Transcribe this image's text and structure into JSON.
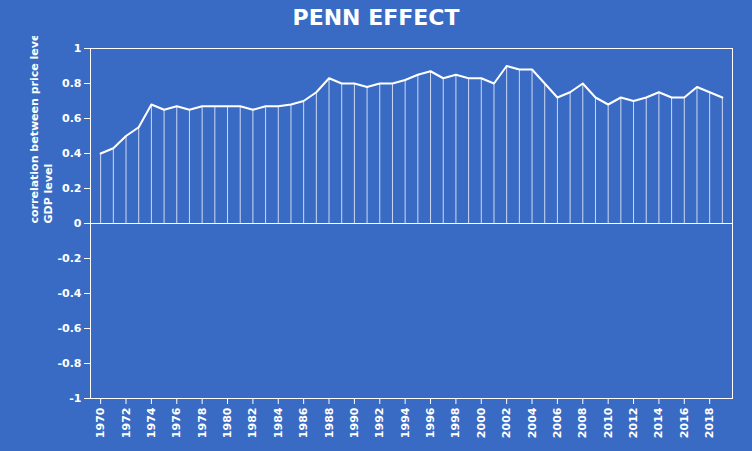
{
  "chart_data": {
    "type": "line",
    "title": "PENN EFFECT",
    "ylabel": "correlation between price level and real\nGDP level",
    "x": [
      1970,
      1971,
      1972,
      1973,
      1974,
      1975,
      1976,
      1977,
      1978,
      1979,
      1980,
      1981,
      1982,
      1983,
      1984,
      1985,
      1986,
      1987,
      1988,
      1989,
      1990,
      1991,
      1992,
      1993,
      1994,
      1995,
      1996,
      1997,
      1998,
      1999,
      2000,
      2001,
      2002,
      2003,
      2004,
      2005,
      2006,
      2007,
      2008,
      2009,
      2010,
      2011,
      2012,
      2013,
      2014,
      2015,
      2016,
      2017,
      2018,
      2019
    ],
    "values": [
      0.4,
      0.43,
      0.5,
      0.55,
      0.68,
      0.65,
      0.67,
      0.65,
      0.67,
      0.67,
      0.67,
      0.67,
      0.65,
      0.67,
      0.67,
      0.68,
      0.7,
      0.75,
      0.83,
      0.8,
      0.8,
      0.78,
      0.8,
      0.8,
      0.82,
      0.85,
      0.87,
      0.83,
      0.85,
      0.83,
      0.83,
      0.8,
      0.9,
      0.88,
      0.88,
      0.8,
      0.72,
      0.75,
      0.8,
      0.72,
      0.68,
      0.72,
      0.7,
      0.72,
      0.75,
      0.72,
      0.72,
      0.78,
      0.75,
      0.72
    ],
    "color": "#ffffff",
    "xlim": [
      1969.2,
      2019.8
    ],
    "xticks": [
      1970,
      1972,
      1974,
      1976,
      1978,
      1980,
      1982,
      1984,
      1986,
      1988,
      1990,
      1992,
      1994,
      1996,
      1998,
      2000,
      2002,
      2004,
      2006,
      2008,
      2010,
      2012,
      2014,
      2016,
      2018
    ],
    "ylim": [
      -1,
      1
    ],
    "yticks": [
      -1,
      -0.8,
      -0.6,
      -0.4,
      -0.2,
      0,
      0.2,
      0.4,
      0.6,
      0.8,
      1
    ],
    "grid": false
  }
}
